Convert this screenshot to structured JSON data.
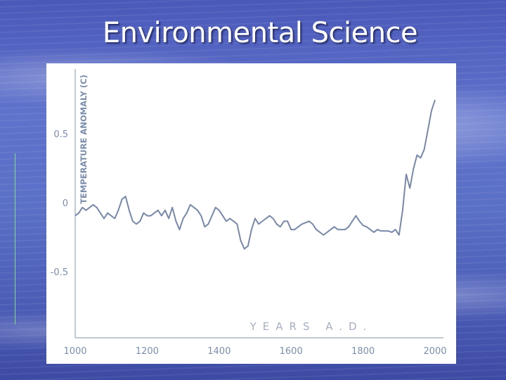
{
  "slide": {
    "title": "Environmental Science",
    "background": "#5a6fc6",
    "title_color": "#ffffff"
  },
  "chart_data": {
    "type": "line",
    "title": "",
    "xlabel": "YEARS A.D.",
    "ylabel": "TEMPERATURE ANOMALY (C)",
    "xlim": [
      1000,
      2000
    ],
    "ylim": [
      -1.0,
      0.95
    ],
    "x_ticks": [
      1000,
      1200,
      1400,
      1600,
      1800,
      2000
    ],
    "y_ticks": [
      0.5,
      0,
      -0.5
    ],
    "y_tick_labels": [
      "0.5",
      "0",
      "-0.5"
    ],
    "grid": false,
    "line_color": "#7888a8",
    "tick_color": "#7a8eac",
    "series": [
      {
        "name": "Temperature anomaly",
        "x": [
          1000,
          1010,
          1020,
          1030,
          1040,
          1050,
          1060,
          1070,
          1080,
          1090,
          1100,
          1110,
          1120,
          1130,
          1140,
          1150,
          1160,
          1170,
          1180,
          1190,
          1200,
          1210,
          1220,
          1230,
          1240,
          1250,
          1260,
          1270,
          1280,
          1290,
          1300,
          1310,
          1320,
          1330,
          1340,
          1350,
          1360,
          1370,
          1380,
          1390,
          1400,
          1410,
          1420,
          1430,
          1440,
          1450,
          1460,
          1470,
          1480,
          1490,
          1500,
          1510,
          1520,
          1530,
          1540,
          1550,
          1560,
          1570,
          1580,
          1590,
          1600,
          1610,
          1620,
          1630,
          1640,
          1650,
          1660,
          1670,
          1680,
          1690,
          1700,
          1710,
          1720,
          1730,
          1740,
          1750,
          1760,
          1770,
          1780,
          1790,
          1800,
          1810,
          1820,
          1830,
          1840,
          1850,
          1860,
          1870,
          1880,
          1890,
          1900,
          1910,
          1920,
          1930,
          1940,
          1950,
          1960,
          1970,
          1980,
          1990,
          2000
        ],
        "values": [
          -0.1,
          -0.08,
          -0.04,
          -0.06,
          -0.04,
          -0.02,
          -0.04,
          -0.08,
          -0.12,
          -0.08,
          -0.1,
          -0.12,
          -0.06,
          0.02,
          0.04,
          -0.06,
          -0.14,
          -0.16,
          -0.14,
          -0.08,
          -0.1,
          -0.1,
          -0.08,
          -0.06,
          -0.1,
          -0.06,
          -0.12,
          -0.04,
          -0.14,
          -0.2,
          -0.12,
          -0.08,
          -0.02,
          -0.04,
          -0.06,
          -0.1,
          -0.18,
          -0.16,
          -0.1,
          -0.04,
          -0.06,
          -0.1,
          -0.14,
          -0.12,
          -0.14,
          -0.16,
          -0.28,
          -0.34,
          -0.32,
          -0.2,
          -0.12,
          -0.16,
          -0.14,
          -0.12,
          -0.1,
          -0.12,
          -0.16,
          -0.18,
          -0.14,
          -0.14,
          -0.2,
          -0.2,
          -0.18,
          -0.16,
          -0.15,
          -0.14,
          -0.16,
          -0.2,
          -0.22,
          -0.24,
          -0.22,
          -0.2,
          -0.18,
          -0.2,
          -0.2,
          -0.2,
          -0.18,
          -0.14,
          -0.1,
          -0.14,
          -0.17,
          -0.18,
          -0.2,
          -0.22,
          -0.2,
          -0.21,
          -0.21,
          -0.21,
          -0.22,
          -0.2,
          -0.24,
          -0.06,
          0.2,
          0.1,
          0.24,
          0.34,
          0.32,
          0.38,
          0.52,
          0.66,
          0.74
        ]
      }
    ]
  }
}
